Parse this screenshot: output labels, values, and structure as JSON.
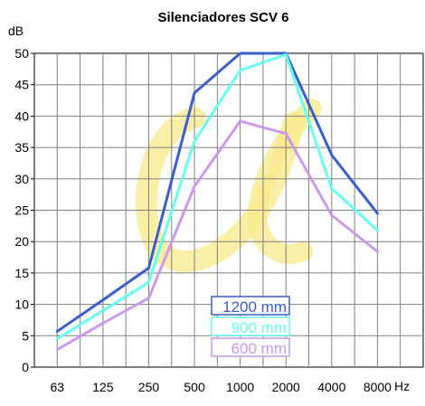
{
  "chart_data": {
    "type": "line",
    "title": "Silenciadores SCV 6",
    "ylabel": "dB",
    "xlabel": "Hz",
    "ylim": [
      0,
      50
    ],
    "y_ticks": [
      "0",
      "5",
      "10",
      "15",
      "20",
      "25",
      "30",
      "35",
      "40",
      "45",
      "50"
    ],
    "categories": [
      "63",
      "125",
      "250",
      "500",
      "1000",
      "2000",
      "4000",
      "8000"
    ],
    "grid": true,
    "legend_position": "bottom-center",
    "series": [
      {
        "name": "1200 mm",
        "color": "#3a5fcd",
        "values": [
          5.7,
          10.7,
          15.8,
          43.7,
          50,
          50,
          33.8,
          24.5
        ]
      },
      {
        "name": "900 mm",
        "color": "#66ffee",
        "values": [
          4.5,
          9.0,
          13.5,
          36.0,
          47.3,
          49.8,
          28.5,
          21.8
        ]
      },
      {
        "name": "600 mm",
        "color": "#cc99ee",
        "values": [
          2.8,
          7.0,
          11.0,
          28.8,
          39.2,
          37.2,
          24.2,
          18.4
        ]
      }
    ],
    "watermark_color": "#f7e98a"
  }
}
